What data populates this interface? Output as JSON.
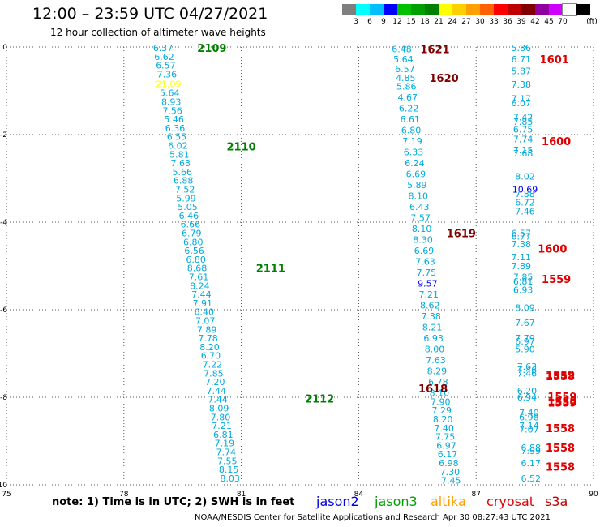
{
  "header": {
    "title": "12:00 – 23:59 UTC 04/27/2021",
    "subtitle": "12 hour collection of altimeter wave heights"
  },
  "colorbar": {
    "colors": [
      "#7f7f7f",
      "#00ffff",
      "#00bfff",
      "#0000ff",
      "#00c000",
      "#00a000",
      "#008000",
      "#ffff00",
      "#ffd000",
      "#ffa000",
      "#ff6000",
      "#ff0000",
      "#c00000",
      "#800000",
      "#9000a0",
      "#d000ff",
      "#ffffff",
      "#000000"
    ],
    "labels": [
      "3",
      "6",
      "9",
      "12",
      "15",
      "18",
      "21",
      "24",
      "27",
      "30",
      "33",
      "36",
      "39",
      "42",
      "45",
      "70"
    ],
    "unit": "(ft)"
  },
  "footer": {
    "note": "note:  1) Time is in UTC;  2) SWH is in feet",
    "credit": "NOAA/NESDIS Center for Satellite Applications and Research    Apr 30 08:27:43 UTC 2021"
  },
  "legend": [
    {
      "label": "jason2",
      "color": "#0000dd"
    },
    {
      "label": "jason3",
      "color": "#00a000"
    },
    {
      "label": "altika",
      "color": "#ffa000"
    },
    {
      "label": "cryosat",
      "color": "#e00000"
    },
    {
      "label": "s3a",
      "color": "#c00000"
    }
  ],
  "chart_data": {
    "type": "scatter",
    "xlim": [
      75,
      90
    ],
    "ylim": [
      -10,
      0
    ],
    "x_ticks": [
      "75",
      "78",
      "81",
      "84",
      "87",
      "90"
    ],
    "y_ticks": [
      "0",
      "-2",
      "-4",
      "-6",
      "-8",
      "-10"
    ],
    "grid": true,
    "tracks": [
      {
        "label": "2109",
        "color": "#008000",
        "x": 80.25,
        "y": -0.02
      },
      {
        "label": "2110",
        "color": "#008000",
        "x": 81.0,
        "y": -2.27
      },
      {
        "label": "2111",
        "color": "#008000",
        "x": 81.75,
        "y": -5.05
      },
      {
        "label": "2112",
        "color": "#008000",
        "x": 83.0,
        "y": -8.03
      },
      {
        "label": "1621",
        "color": "#800000",
        "x": 85.95,
        "y": -0.05
      },
      {
        "label": "1620",
        "color": "#800000",
        "x": 86.18,
        "y": -0.7
      },
      {
        "label": "1619",
        "color": "#800000",
        "x": 86.62,
        "y": -4.25
      },
      {
        "label": "1618",
        "color": "#800000",
        "x": 85.9,
        "y": -7.8
      },
      {
        "label": "1601",
        "color": "#e00000",
        "x": 89.0,
        "y": -0.28
      },
      {
        "label": "1600",
        "color": "#e00000",
        "x": 89.05,
        "y": -2.15
      },
      {
        "label": "1600",
        "color": "#e00000",
        "x": 88.95,
        "y": -4.6
      },
      {
        "label": "1559",
        "color": "#e00000",
        "x": 89.05,
        "y": -5.3
      },
      {
        "label": "1559",
        "color": "#e00000",
        "x": 89.15,
        "y": -7.48
      },
      {
        "label": "1559",
        "color": "#e00000",
        "x": 89.2,
        "y": -7.98
      },
      {
        "label": "1559",
        "color": "#e00000",
        "x": 89.2,
        "y": -8.12
      },
      {
        "label": "1558",
        "color": "#e00000",
        "x": 89.15,
        "y": -7.52
      },
      {
        "label": "1558",
        "color": "#e00000",
        "x": 89.2,
        "y": -8.08
      },
      {
        "label": "1558",
        "color": "#e00000",
        "x": 89.15,
        "y": -8.7
      },
      {
        "label": "1558",
        "color": "#e00000",
        "x": 89.15,
        "y": -9.15
      },
      {
        "label": "1558",
        "color": "#e00000",
        "x": 89.15,
        "y": -9.58
      }
    ],
    "series": [
      {
        "name": "jason3",
        "color": "#00aadd",
        "points": [
          {
            "x": 79.0,
            "y": -0.02,
            "v": "6.37"
          },
          {
            "x": 79.03,
            "y": -0.22,
            "v": "6.62"
          },
          {
            "x": 79.07,
            "y": -0.42,
            "v": "6.57"
          },
          {
            "x": 79.1,
            "y": -0.62,
            "v": "7.36"
          },
          {
            "x": 79.14,
            "y": -0.84,
            "v": "21.09",
            "color": "#ffff00"
          },
          {
            "x": 79.17,
            "y": -1.05,
            "v": "5.64"
          },
          {
            "x": 79.21,
            "y": -1.25,
            "v": "8.93"
          },
          {
            "x": 79.24,
            "y": -1.45,
            "v": "7.56"
          },
          {
            "x": 79.28,
            "y": -1.65,
            "v": "5.46"
          },
          {
            "x": 79.31,
            "y": -1.85,
            "v": "6.36"
          },
          {
            "x": 79.35,
            "y": -2.05,
            "v": "6.55"
          },
          {
            "x": 79.38,
            "y": -2.25,
            "v": "6.02"
          },
          {
            "x": 79.42,
            "y": -2.45,
            "v": "5.81"
          },
          {
            "x": 79.45,
            "y": -2.65,
            "v": "7.63"
          },
          {
            "x": 79.49,
            "y": -2.85,
            "v": "5.66"
          },
          {
            "x": 79.52,
            "y": -3.05,
            "v": "6.88"
          },
          {
            "x": 79.56,
            "y": -3.25,
            "v": "7.52"
          },
          {
            "x": 79.59,
            "y": -3.45,
            "v": "5.99"
          },
          {
            "x": 79.63,
            "y": -3.65,
            "v": "5.05"
          },
          {
            "x": 79.66,
            "y": -3.85,
            "v": "6.46"
          },
          {
            "x": 79.7,
            "y": -4.05,
            "v": "6.66"
          },
          {
            "x": 79.73,
            "y": -4.25,
            "v": "6.79"
          },
          {
            "x": 79.77,
            "y": -4.45,
            "v": "6.80"
          },
          {
            "x": 79.8,
            "y": -4.65,
            "v": "6.56"
          },
          {
            "x": 79.84,
            "y": -4.85,
            "v": "6.80"
          },
          {
            "x": 79.87,
            "y": -5.05,
            "v": "8.68"
          },
          {
            "x": 79.91,
            "y": -5.25,
            "v": "7.61"
          },
          {
            "x": 79.94,
            "y": -5.45,
            "v": "8.24"
          },
          {
            "x": 79.98,
            "y": -5.65,
            "v": "7.44"
          },
          {
            "x": 80.01,
            "y": -5.85,
            "v": "7.91"
          },
          {
            "x": 80.05,
            "y": -6.05,
            "v": "6.40"
          },
          {
            "x": 80.08,
            "y": -6.25,
            "v": "7.07"
          },
          {
            "x": 80.12,
            "y": -6.45,
            "v": "7.89"
          },
          {
            "x": 80.15,
            "y": -6.65,
            "v": "7.78"
          },
          {
            "x": 80.19,
            "y": -6.85,
            "v": "8.20"
          },
          {
            "x": 80.22,
            "y": -7.05,
            "v": "6.70"
          },
          {
            "x": 80.26,
            "y": -7.25,
            "v": "7.22"
          },
          {
            "x": 80.29,
            "y": -7.45,
            "v": "7.85"
          },
          {
            "x": 80.33,
            "y": -7.65,
            "v": "7.20"
          },
          {
            "x": 80.36,
            "y": -7.85,
            "v": "7.44"
          },
          {
            "x": 80.4,
            "y": -8.05,
            "v": "7.44"
          },
          {
            "x": 80.43,
            "y": -8.25,
            "v": "8.09"
          },
          {
            "x": 80.47,
            "y": -8.45,
            "v": "7.80"
          },
          {
            "x": 80.5,
            "y": -8.65,
            "v": "7.21"
          },
          {
            "x": 80.54,
            "y": -8.85,
            "v": "6.81"
          },
          {
            "x": 80.57,
            "y": -9.05,
            "v": "7.19"
          },
          {
            "x": 80.61,
            "y": -9.25,
            "v": "7.74"
          },
          {
            "x": 80.64,
            "y": -9.45,
            "v": "7.55"
          },
          {
            "x": 80.68,
            "y": -9.65,
            "v": "8.15"
          },
          {
            "x": 80.71,
            "y": -9.85,
            "v": "8.03"
          }
        ]
      },
      {
        "name": "s3a",
        "color": "#00aadd",
        "points": [
          {
            "x": 85.1,
            "y": -0.05,
            "v": "6.48"
          },
          {
            "x": 85.14,
            "y": -0.28,
            "v": "5.64"
          },
          {
            "x": 85.18,
            "y": -0.5,
            "v": "6.57"
          },
          {
            "x": 85.2,
            "y": -0.7,
            "v": "4.85"
          },
          {
            "x": 85.22,
            "y": -0.9,
            "v": "5.86"
          },
          {
            "x": 85.25,
            "y": -1.15,
            "v": "4.67"
          },
          {
            "x": 85.28,
            "y": -1.4,
            "v": "6.22"
          },
          {
            "x": 85.31,
            "y": -1.65,
            "v": "6.61"
          },
          {
            "x": 85.34,
            "y": -1.9,
            "v": "6.80"
          },
          {
            "x": 85.37,
            "y": -2.15,
            "v": "7.19"
          },
          {
            "x": 85.4,
            "y": -2.4,
            "v": "6.33"
          },
          {
            "x": 85.43,
            "y": -2.65,
            "v": "6.24"
          },
          {
            "x": 85.46,
            "y": -2.9,
            "v": "6.69"
          },
          {
            "x": 85.49,
            "y": -3.15,
            "v": "5.89"
          },
          {
            "x": 85.52,
            "y": -3.4,
            "v": "8.10"
          },
          {
            "x": 85.55,
            "y": -3.65,
            "v": "6.43"
          },
          {
            "x": 85.58,
            "y": -3.9,
            "v": "7.57"
          },
          {
            "x": 85.61,
            "y": -4.15,
            "v": "8.10"
          },
          {
            "x": 85.64,
            "y": -4.4,
            "v": "8.30"
          },
          {
            "x": 85.67,
            "y": -4.65,
            "v": "6.69"
          },
          {
            "x": 85.7,
            "y": -4.9,
            "v": "7.63"
          },
          {
            "x": 85.73,
            "y": -5.15,
            "v": "7.75"
          },
          {
            "x": 85.76,
            "y": -5.4,
            "v": "9.57",
            "color": "#0000ff"
          },
          {
            "x": 85.79,
            "y": -5.65,
            "v": "7.21"
          },
          {
            "x": 85.82,
            "y": -5.9,
            "v": "8.62"
          },
          {
            "x": 85.85,
            "y": -6.15,
            "v": "7.38"
          },
          {
            "x": 85.88,
            "y": -6.4,
            "v": "8.21"
          },
          {
            "x": 85.91,
            "y": -6.65,
            "v": "6.93"
          },
          {
            "x": 85.94,
            "y": -6.9,
            "v": "8.00"
          },
          {
            "x": 85.97,
            "y": -7.15,
            "v": "7.63"
          },
          {
            "x": 86.0,
            "y": -7.4,
            "v": "8.29"
          },
          {
            "x": 86.03,
            "y": -7.65,
            "v": "6.78"
          },
          {
            "x": 86.06,
            "y": -7.9,
            "v": "8.10"
          },
          {
            "x": 86.09,
            "y": -8.1,
            "v": "7.90"
          },
          {
            "x": 86.12,
            "y": -8.3,
            "v": "7.29"
          },
          {
            "x": 86.15,
            "y": -8.5,
            "v": "8.20"
          },
          {
            "x": 86.18,
            "y": -8.7,
            "v": "7.40"
          },
          {
            "x": 86.21,
            "y": -8.9,
            "v": "7.75"
          },
          {
            "x": 86.24,
            "y": -9.1,
            "v": "6.97"
          },
          {
            "x": 86.27,
            "y": -9.3,
            "v": "6.17"
          },
          {
            "x": 86.3,
            "y": -9.5,
            "v": "6.98"
          },
          {
            "x": 86.33,
            "y": -9.7,
            "v": "7.30"
          },
          {
            "x": 86.36,
            "y": -9.9,
            "v": "7.45"
          }
        ]
      },
      {
        "name": "cryosat",
        "color": "#00aadd",
        "points": [
          {
            "x": 88.15,
            "y": -0.02,
            "v": "5.86"
          },
          {
            "x": 88.15,
            "y": -0.28,
            "v": "6.71"
          },
          {
            "x": 88.15,
            "y": -0.55,
            "v": "5.87"
          },
          {
            "x": 88.15,
            "y": -0.85,
            "v": "7.38"
          },
          {
            "x": 88.15,
            "y": -1.18,
            "v": "7.17"
          },
          {
            "x": 88.15,
            "y": -1.28,
            "v": "6.07"
          },
          {
            "x": 88.2,
            "y": -1.6,
            "v": "7.42"
          },
          {
            "x": 88.2,
            "y": -1.7,
            "v": "7.85"
          },
          {
            "x": 88.2,
            "y": -1.88,
            "v": "6.75"
          },
          {
            "x": 88.2,
            "y": -2.1,
            "v": "7.74"
          },
          {
            "x": 88.2,
            "y": -2.35,
            "v": "7.15"
          },
          {
            "x": 88.2,
            "y": -2.43,
            "v": "7.68"
          },
          {
            "x": 88.25,
            "y": -2.95,
            "v": "8.02"
          },
          {
            "x": 88.25,
            "y": -3.25,
            "v": "10.69",
            "color": "#0000ff"
          },
          {
            "x": 88.25,
            "y": -3.35,
            "v": "7.88"
          },
          {
            "x": 88.25,
            "y": -3.55,
            "v": "6.72"
          },
          {
            "x": 88.25,
            "y": -3.75,
            "v": "7.46"
          },
          {
            "x": 88.15,
            "y": -4.25,
            "v": "6.57"
          },
          {
            "x": 88.15,
            "y": -4.32,
            "v": "6.77"
          },
          {
            "x": 88.15,
            "y": -4.5,
            "v": "7.38"
          },
          {
            "x": 88.15,
            "y": -4.8,
            "v": "7.11"
          },
          {
            "x": 88.15,
            "y": -5.0,
            "v": "7.89"
          },
          {
            "x": 88.2,
            "y": -5.25,
            "v": "7.85"
          },
          {
            "x": 88.2,
            "y": -5.35,
            "v": "6.81"
          },
          {
            "x": 88.2,
            "y": -5.55,
            "v": "6.93"
          },
          {
            "x": 88.25,
            "y": -5.95,
            "v": "8.09"
          },
          {
            "x": 88.25,
            "y": -6.3,
            "v": "7.67"
          },
          {
            "x": 88.25,
            "y": -6.65,
            "v": "7.79"
          },
          {
            "x": 88.25,
            "y": -6.72,
            "v": "6.97"
          },
          {
            "x": 88.25,
            "y": -6.9,
            "v": "5.90"
          },
          {
            "x": 88.3,
            "y": -7.3,
            "v": "7.63"
          },
          {
            "x": 88.3,
            "y": -7.37,
            "v": "7.46"
          },
          {
            "x": 88.3,
            "y": -7.45,
            "v": "7.46"
          },
          {
            "x": 88.3,
            "y": -7.85,
            "v": "6.20"
          },
          {
            "x": 88.3,
            "y": -8.0,
            "v": "6.94"
          },
          {
            "x": 88.35,
            "y": -8.35,
            "v": "7.40"
          },
          {
            "x": 88.35,
            "y": -8.45,
            "v": "6.98"
          },
          {
            "x": 88.35,
            "y": -8.65,
            "v": "7.14"
          },
          {
            "x": 88.35,
            "y": -8.73,
            "v": "7.07"
          },
          {
            "x": 88.4,
            "y": -9.15,
            "v": "6.88"
          },
          {
            "x": 88.4,
            "y": -9.22,
            "v": "7.99"
          },
          {
            "x": 88.4,
            "y": -9.5,
            "v": "6.17"
          },
          {
            "x": 88.4,
            "y": -9.85,
            "v": "6.52"
          }
        ]
      }
    ]
  }
}
